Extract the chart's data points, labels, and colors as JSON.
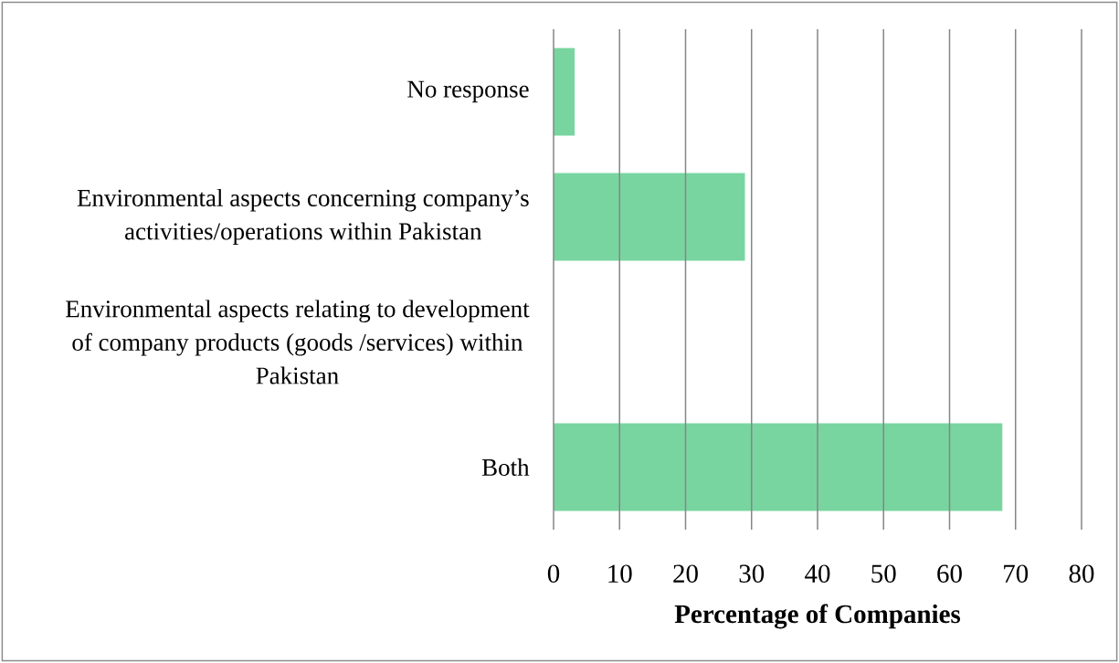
{
  "chart_data": {
    "type": "bar",
    "orientation": "horizontal",
    "categories": [
      "No response",
      "Environmental aspects concerning company’s activities/operations within Pakistan",
      "Environmental aspects relating to development of company products (goods /services) within Pakistan",
      "Both"
    ],
    "values": [
      3.2,
      29,
      0,
      68
    ],
    "color": "#78d5a0",
    "xlabel": "Percentage of Companies",
    "xlim": [
      0,
      80
    ],
    "xticks": [
      0,
      10,
      20,
      30,
      40,
      50,
      60,
      70,
      80
    ],
    "grid": "x"
  }
}
